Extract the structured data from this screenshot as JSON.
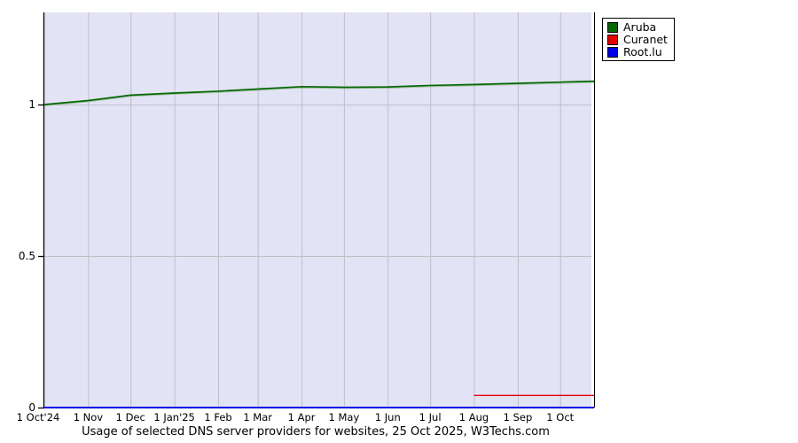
{
  "page": {
    "background_color": "#ffffff"
  },
  "chart_data": {
    "type": "line",
    "title": "Usage of selected DNS server providers for websites, 25 Oct 2025, W3Techs.com",
    "x_tick_labels": [
      "1 Oct'24",
      "1 Nov",
      "1 Dec",
      "1 Jan'25",
      "1 Feb",
      "1 Mar",
      "1 Apr",
      "1 May",
      "1 Jun",
      "1 Jul",
      "1 Aug",
      "1 Sep",
      "1 Oct"
    ],
    "x_tick_days": [
      0,
      31,
      61,
      92,
      123,
      151,
      182,
      212,
      243,
      273,
      304,
      335,
      365
    ],
    "x_total_days": 389,
    "y_ticks": [
      0,
      0.5,
      1
    ],
    "y_tick_labels": [
      "0",
      "0.5",
      "1"
    ],
    "ylim": [
      0,
      1.304
    ],
    "grid": true,
    "legend_position": "top-right-outside",
    "colors": {
      "plot_background": "#e3e3f6",
      "grid": "#bfbfc6",
      "axis": "#000000"
    },
    "series": [
      {
        "name": "Aruba",
        "color": "#056805",
        "x_days": [
          0,
          31,
          61,
          92,
          123,
          151,
          182,
          212,
          243,
          273,
          304,
          335,
          365,
          389
        ],
        "values": [
          1.0,
          1.013,
          1.031,
          1.038,
          1.044,
          1.051,
          1.059,
          1.057,
          1.058,
          1.063,
          1.066,
          1.07,
          1.074,
          1.077
        ]
      },
      {
        "name": "Curanet",
        "color": "#e60000",
        "x_days": [
          304,
          389
        ],
        "values": [
          0.04,
          0.04
        ]
      },
      {
        "name": "Root.lu",
        "color": "#0000e6",
        "x_days": [
          0,
          389
        ],
        "values": [
          0.0,
          0.0
        ]
      }
    ]
  }
}
